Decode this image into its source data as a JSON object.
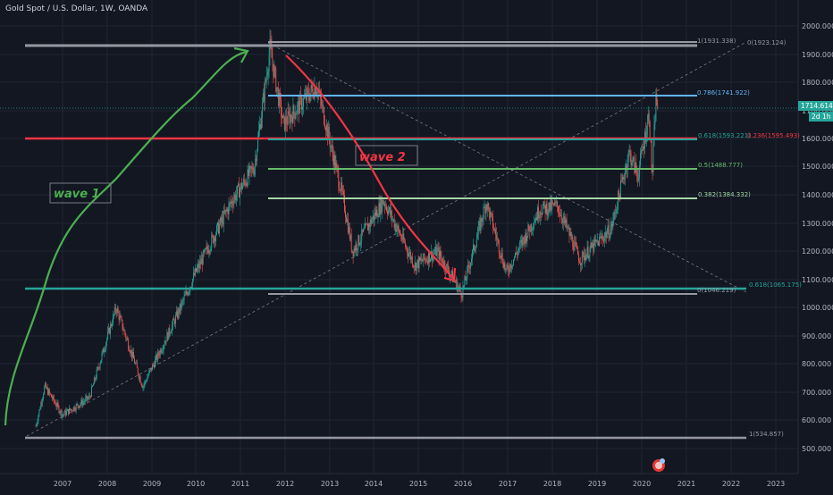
{
  "header": {
    "symbol_title": "Gold Spot / U.S. Dollar, 1W, OANDA"
  },
  "price_axis": {
    "ticks": [
      "2000.000",
      "1900.000",
      "1800.000",
      "1700.000",
      "1600.000",
      "1500.000",
      "1400.000",
      "1300.000",
      "1200.000",
      "1100.000",
      "1000.000",
      "900.000",
      "800.000",
      "700.000",
      "600.000",
      "500.000"
    ],
    "last_price": "1714.614",
    "countdown": "2d 1h",
    "colors": {
      "last_price_bg": "#26a69a"
    }
  },
  "time_axis": {
    "ticks": [
      "2007",
      "2008",
      "2009",
      "2010",
      "2011",
      "2012",
      "2013",
      "2014",
      "2015",
      "2016",
      "2017",
      "2018",
      "2019",
      "2020",
      "2021",
      "2022",
      "2023"
    ]
  },
  "annotations": {
    "wave1": "wave 1",
    "wave2": "wave 2",
    "colors": {
      "wave1": "#4caf50",
      "wave2": "#f23645"
    }
  },
  "fib_labels": {
    "top_1": "1(1931.338)",
    "top_0": "0(1923.124)",
    "f786": "0.786(1741.922)",
    "f618_left": "0.618(1593.221)",
    "f236": "0.236(1595.493)",
    "f5": "0.5(1488.777)",
    "f382": "0.382(1384.332)",
    "f618_low": "0.618(1065.175)",
    "f0_low": "0(1046.219)",
    "bottom_1": "1(534.857)"
  },
  "chart_data": {
    "type": "candlestick",
    "title": "Gold Spot / U.S. Dollar, 1W, OANDA",
    "y_axis_range": [
      480,
      2040
    ],
    "x_axis_range": [
      2006.3,
      2023.6
    ],
    "key_points": [
      {
        "date": "2006.4",
        "price": 580
      },
      {
        "date": "2006.6",
        "price": 720
      },
      {
        "date": "2007.0",
        "price": 620
      },
      {
        "date": "2007.6",
        "price": 680
      },
      {
        "date": "2008.2",
        "price": 1000
      },
      {
        "date": "2008.8",
        "price": 720
      },
      {
        "date": "2009.5",
        "price": 950
      },
      {
        "date": "2010.0",
        "price": 1130
      },
      {
        "date": "2010.8",
        "price": 1380
      },
      {
        "date": "2011.3",
        "price": 1500
      },
      {
        "date": "2011.65",
        "price": 1920
      },
      {
        "date": "2011.95",
        "price": 1650
      },
      {
        "date": "2012.7",
        "price": 1790
      },
      {
        "date": "2013.3",
        "price": 1380
      },
      {
        "date": "2013.5",
        "price": 1200
      },
      {
        "date": "2014.2",
        "price": 1380
      },
      {
        "date": "2014.9",
        "price": 1150
      },
      {
        "date": "2015.4",
        "price": 1200
      },
      {
        "date": "2015.95",
        "price": 1050
      },
      {
        "date": "2016.5",
        "price": 1375
      },
      {
        "date": "2016.95",
        "price": 1125
      },
      {
        "date": "2017.7",
        "price": 1350
      },
      {
        "date": "2018.1",
        "price": 1360
      },
      {
        "date": "2018.6",
        "price": 1170
      },
      {
        "date": "2019.3",
        "price": 1280
      },
      {
        "date": "2019.7",
        "price": 1550
      },
      {
        "date": "2019.9",
        "price": 1470
      },
      {
        "date": "2020.15",
        "price": 1690
      },
      {
        "date": "2020.22",
        "price": 1460
      },
      {
        "date": "2020.3",
        "price": 1740
      },
      {
        "date": "2020.35",
        "price": 1714.614
      }
    ],
    "horizontal_levels": [
      {
        "label": "1(1931.338)",
        "price": 1931.338,
        "color": "#9598a1"
      },
      {
        "label": "0.786(1741.922)",
        "price": 1741.922,
        "color": "#64b5f6"
      },
      {
        "label": "0.236(1595.493)",
        "price": 1595.493,
        "color": "#f23645"
      },
      {
        "label": "0.618(1593.221)",
        "price": 1593.221,
        "color": "#26a69a"
      },
      {
        "label": "0.5(1488.777)",
        "price": 1488.777,
        "color": "#66bb6a"
      },
      {
        "label": "0.382(1384.332)",
        "price": 1384.332,
        "color": "#81c784"
      },
      {
        "label": "0.618(1065.175)",
        "price": 1065.175,
        "color": "#26a69a"
      },
      {
        "label": "0(1046.219)",
        "price": 1046.219,
        "color": "#9598a1"
      },
      {
        "label": "1(534.857)",
        "price": 534.857,
        "color": "#9598a1"
      }
    ],
    "colors": {
      "up": "#26a69a",
      "down": "#ef5350"
    }
  }
}
